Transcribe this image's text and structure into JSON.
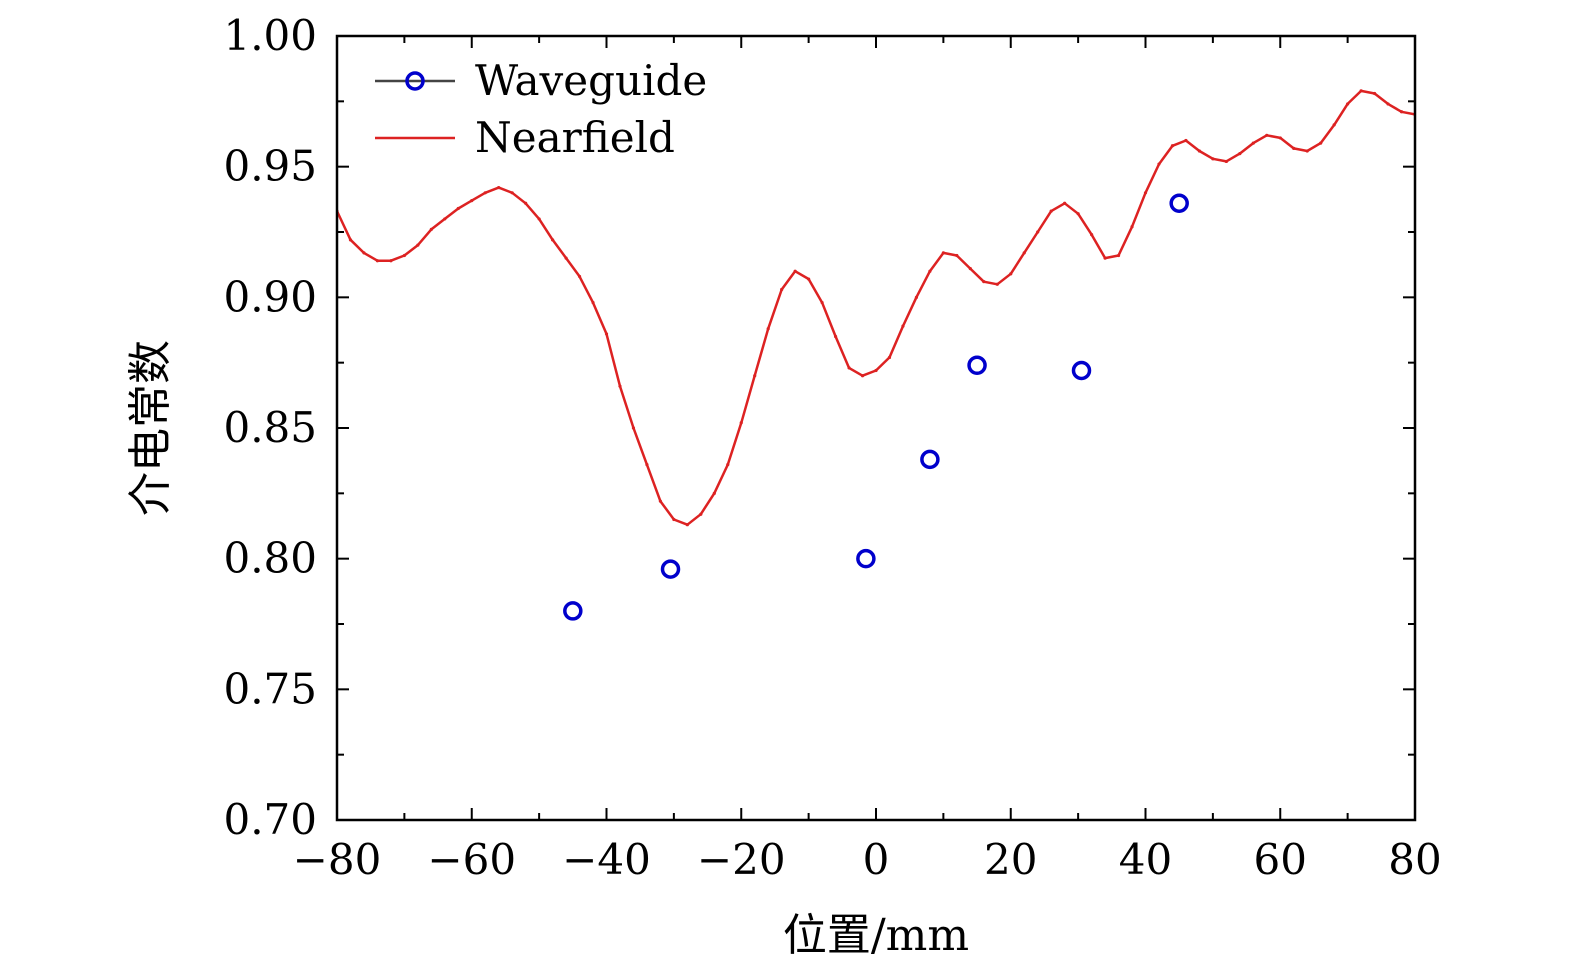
{
  "chart_data": {
    "type": "line",
    "title": "",
    "xlabel": "位置/mm",
    "ylabel": "介电常数",
    "xlim": [
      -80,
      80
    ],
    "ylim": [
      0.7,
      1.0
    ],
    "xticks": [
      -80,
      -60,
      -40,
      -20,
      0,
      20,
      40,
      60,
      80
    ],
    "xtick_labels": [
      "−80",
      "−60",
      "−40",
      "−20",
      "0",
      "20",
      "40",
      "60",
      "80"
    ],
    "yticks": [
      0.7,
      0.75,
      0.8,
      0.85,
      0.9,
      0.95,
      1.0
    ],
    "ytick_labels": [
      "0.70",
      "0.75",
      "0.80",
      "0.85",
      "0.90",
      "0.95",
      "1.00"
    ],
    "grid": false,
    "legend_position": "top-left",
    "series": [
      {
        "name": "Waveguide",
        "style": "markers",
        "marker": "circle-open",
        "color": "#0000cc",
        "line_color": "#444444",
        "x": [
          -45,
          -30.5,
          -1.5,
          8,
          15,
          30.5,
          45
        ],
        "y": [
          0.78,
          0.796,
          0.8,
          0.838,
          0.874,
          0.872,
          0.936
        ]
      },
      {
        "name": "Nearfield",
        "style": "line",
        "color": "#dd2222",
        "x": [
          -80,
          -78,
          -76,
          -74,
          -72,
          -70,
          -68,
          -66,
          -64,
          -62,
          -60,
          -58,
          -56,
          -54,
          -52,
          -50,
          -48,
          -46,
          -44,
          -42,
          -40,
          -38,
          -36,
          -34,
          -32,
          -30,
          -28,
          -26,
          -24,
          -22,
          -20,
          -18,
          -16,
          -14,
          -12,
          -10,
          -8,
          -6,
          -4,
          -2,
          0,
          2,
          4,
          6,
          8,
          10,
          12,
          14,
          16,
          18,
          20,
          22,
          24,
          26,
          28,
          30,
          32,
          34,
          36,
          38,
          40,
          42,
          44,
          46,
          48,
          50,
          52,
          54,
          56,
          58,
          60,
          62,
          64,
          66,
          68,
          70,
          72,
          74,
          76,
          78,
          80
        ],
        "y": [
          0.933,
          0.922,
          0.917,
          0.914,
          0.914,
          0.916,
          0.92,
          0.926,
          0.93,
          0.934,
          0.937,
          0.94,
          0.942,
          0.94,
          0.936,
          0.93,
          0.922,
          0.915,
          0.908,
          0.898,
          0.886,
          0.866,
          0.85,
          0.836,
          0.822,
          0.815,
          0.813,
          0.817,
          0.825,
          0.836,
          0.852,
          0.87,
          0.888,
          0.903,
          0.91,
          0.907,
          0.898,
          0.885,
          0.873,
          0.87,
          0.872,
          0.877,
          0.889,
          0.9,
          0.91,
          0.917,
          0.916,
          0.911,
          0.906,
          0.905,
          0.909,
          0.917,
          0.925,
          0.933,
          0.936,
          0.932,
          0.924,
          0.915,
          0.916,
          0.927,
          0.94,
          0.951,
          0.958,
          0.96,
          0.956,
          0.953,
          0.952,
          0.955,
          0.959,
          0.962,
          0.961,
          0.957,
          0.956,
          0.959,
          0.966,
          0.974,
          0.979,
          0.978,
          0.974,
          0.971,
          0.97
        ]
      }
    ]
  }
}
